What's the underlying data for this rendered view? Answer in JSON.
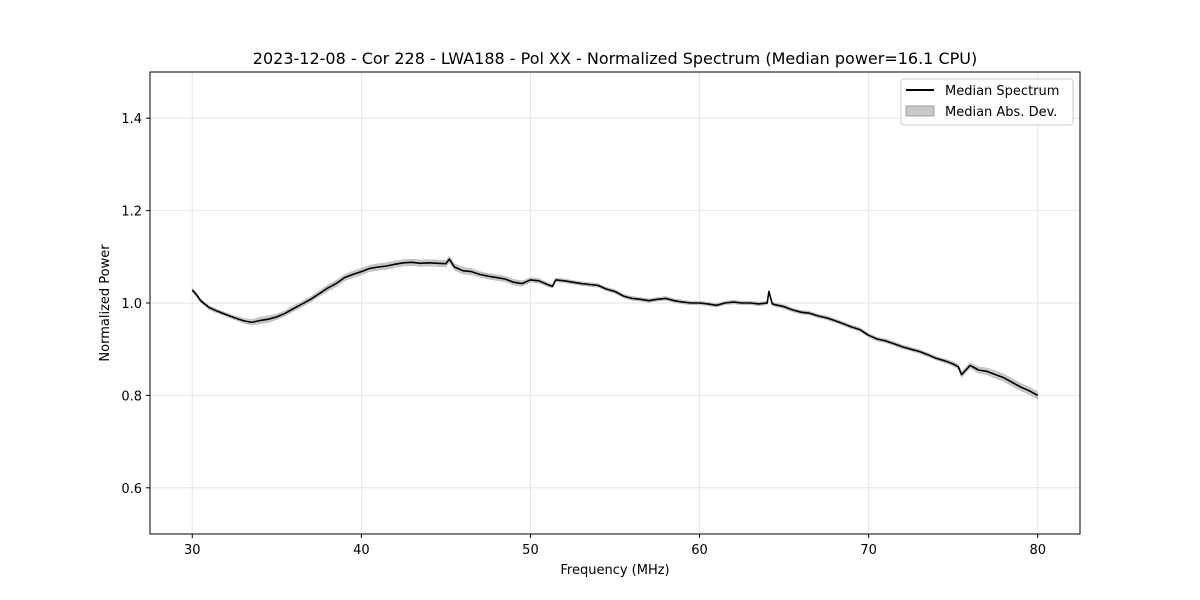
{
  "chart_data": {
    "type": "line",
    "title": "2023-12-08 - Cor 228 - LWA188 - Pol XX - Normalized Spectrum (Median power=16.1 CPU)",
    "xlabel": "Frequency (MHz)",
    "ylabel": "Normalized Power",
    "xlim": [
      27.5,
      82.5
    ],
    "ylim": [
      0.5,
      1.5
    ],
    "xticks": [
      30,
      40,
      50,
      60,
      70,
      80
    ],
    "yticks": [
      0.6,
      0.8,
      1.0,
      1.2,
      1.4
    ],
    "xtick_labels": [
      "30",
      "40",
      "50",
      "60",
      "70",
      "80"
    ],
    "ytick_labels": [
      "0.6",
      "0.8",
      "1.0",
      "1.2",
      "1.4"
    ],
    "grid": true,
    "legend_position": "top-right",
    "legend": [
      {
        "label": "Median Spectrum",
        "kind": "line",
        "color": "#000000"
      },
      {
        "label": "Median Abs. Dev.",
        "kind": "band",
        "color": "#bfbfbf"
      }
    ],
    "series": [
      {
        "name": "Median Spectrum",
        "color": "#000000",
        "x": [
          30,
          30.2,
          30.5,
          31,
          31.5,
          32,
          32.5,
          33,
          33.5,
          34,
          34.5,
          35,
          35.5,
          36,
          36.5,
          37,
          37.5,
          38,
          38.5,
          39,
          39.5,
          40,
          40.5,
          41,
          41.5,
          42,
          42.5,
          43,
          43.5,
          44,
          44.5,
          45,
          45.2,
          45.5,
          46,
          46.5,
          47,
          47.5,
          48,
          48.5,
          49,
          49.5,
          50,
          50.5,
          51,
          51.3,
          51.5,
          52,
          52.5,
          53,
          53.5,
          54,
          54.5,
          55,
          55.5,
          56,
          56.5,
          57,
          57.5,
          58,
          58.5,
          59,
          59.5,
          60,
          60.5,
          61,
          61.5,
          62,
          62.5,
          63,
          63.5,
          64,
          64.1,
          64.3,
          64.5,
          65,
          65.5,
          66,
          66.5,
          67,
          67.5,
          68,
          68.5,
          69,
          69.5,
          70,
          70.5,
          71,
          71.5,
          72,
          72.5,
          73,
          73.5,
          74,
          74.5,
          75,
          75.3,
          75.5,
          76,
          76.5,
          77,
          77.5,
          78,
          78.5,
          79,
          79.5,
          80
        ],
        "values": [
          1.028,
          1.02,
          1.005,
          0.99,
          0.982,
          0.975,
          0.968,
          0.962,
          0.958,
          0.962,
          0.965,
          0.97,
          0.978,
          0.988,
          0.998,
          1.008,
          1.02,
          1.032,
          1.042,
          1.055,
          1.062,
          1.068,
          1.075,
          1.078,
          1.08,
          1.084,
          1.087,
          1.088,
          1.086,
          1.087,
          1.086,
          1.085,
          1.095,
          1.078,
          1.07,
          1.068,
          1.062,
          1.058,
          1.055,
          1.052,
          1.045,
          1.042,
          1.05,
          1.048,
          1.04,
          1.036,
          1.05,
          1.048,
          1.045,
          1.042,
          1.04,
          1.038,
          1.03,
          1.025,
          1.015,
          1.01,
          1.008,
          1.005,
          1.008,
          1.01,
          1.005,
          1.002,
          1.0,
          1.0,
          0.998,
          0.995,
          1.0,
          1.002,
          1.0,
          1.0,
          0.998,
          1.0,
          1.025,
          0.998,
          0.996,
          0.992,
          0.985,
          0.98,
          0.978,
          0.972,
          0.968,
          0.962,
          0.955,
          0.948,
          0.942,
          0.93,
          0.922,
          0.918,
          0.912,
          0.905,
          0.9,
          0.895,
          0.888,
          0.88,
          0.875,
          0.868,
          0.862,
          0.845,
          0.865,
          0.855,
          0.852,
          0.845,
          0.838,
          0.828,
          0.818,
          0.81,
          0.8
        ],
        "mad_halfwidth": [
          0.004,
          0.004,
          0.004,
          0.004,
          0.004,
          0.004,
          0.004,
          0.005,
          0.006,
          0.007,
          0.007,
          0.006,
          0.006,
          0.006,
          0.006,
          0.006,
          0.006,
          0.007,
          0.007,
          0.007,
          0.007,
          0.007,
          0.007,
          0.007,
          0.007,
          0.007,
          0.007,
          0.007,
          0.007,
          0.007,
          0.007,
          0.007,
          0.007,
          0.007,
          0.007,
          0.007,
          0.006,
          0.006,
          0.006,
          0.006,
          0.006,
          0.006,
          0.005,
          0.005,
          0.004,
          0.004,
          0.004,
          0.004,
          0.004,
          0.004,
          0.004,
          0.004,
          0.004,
          0.004,
          0.004,
          0.004,
          0.004,
          0.004,
          0.004,
          0.004,
          0.004,
          0.004,
          0.004,
          0.004,
          0.004,
          0.004,
          0.004,
          0.004,
          0.004,
          0.004,
          0.004,
          0.004,
          0.004,
          0.004,
          0.004,
          0.004,
          0.004,
          0.004,
          0.004,
          0.004,
          0.004,
          0.004,
          0.004,
          0.004,
          0.004,
          0.004,
          0.004,
          0.004,
          0.004,
          0.004,
          0.004,
          0.004,
          0.004,
          0.004,
          0.004,
          0.005,
          0.005,
          0.006,
          0.006,
          0.007,
          0.007,
          0.008,
          0.008,
          0.008,
          0.008,
          0.008,
          0.008
        ]
      }
    ]
  }
}
